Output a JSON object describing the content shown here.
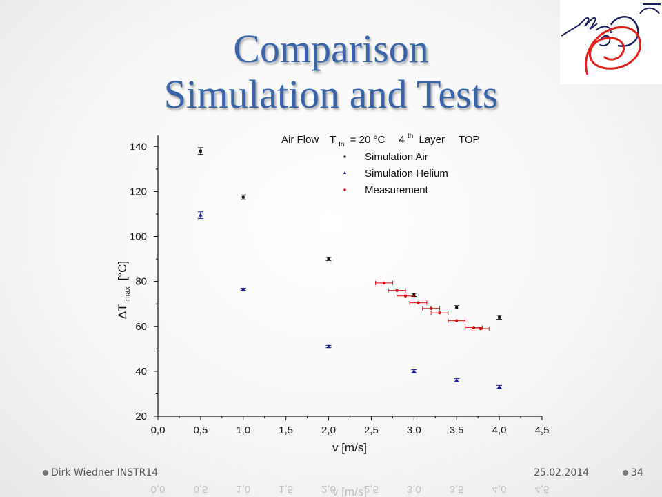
{
  "slide": {
    "title_line1": "Comparison",
    "title_line2": "Simulation and Tests",
    "footer_author": "Dirk Wiedner INSTR14",
    "footer_date": "25.02.2014",
    "footer_page": "34"
  },
  "colors": {
    "title": "#3a64a8",
    "air": "#111111",
    "helium": "#1a1aa0",
    "measurement": "#d01010",
    "logo_red": "#e0201a",
    "logo_navy": "#1a2060"
  },
  "logo": {
    "icon": "mu3e-logo"
  },
  "chart_data": {
    "type": "scatter",
    "annotation_parts": [
      "Air Flow",
      "T",
      "In",
      "= 20 °C",
      "4",
      "th",
      "Layer",
      "TOP"
    ],
    "xlabel": "v [m/s]",
    "ylabel_parts": [
      "ΔT",
      "max",
      "[°C]"
    ],
    "xlim": [
      0.0,
      4.5
    ],
    "ylim": [
      20,
      145
    ],
    "xticks": [
      "0,0",
      "0,5",
      "1,0",
      "1,5",
      "2,0",
      "2,5",
      "3,0",
      "3,5",
      "4,0",
      "4,5"
    ],
    "yticks": [
      "20",
      "40",
      "60",
      "80",
      "100",
      "120",
      "140"
    ],
    "legend_position": "top-center",
    "grid": false,
    "series": [
      {
        "name": "Simulation Air",
        "marker": "square",
        "color": "#111111",
        "points": [
          {
            "x": 0.5,
            "y": 138,
            "yerr": 1.5
          },
          {
            "x": 1.0,
            "y": 117.5,
            "yerr": 1
          },
          {
            "x": 2.0,
            "y": 90,
            "yerr": 0.7
          },
          {
            "x": 3.0,
            "y": 74,
            "yerr": 0.7
          },
          {
            "x": 3.5,
            "y": 68.5,
            "yerr": 0.7
          },
          {
            "x": 4.0,
            "y": 64,
            "yerr": 0.9
          }
        ]
      },
      {
        "name": "Simulation Helium",
        "marker": "triangle",
        "color": "#1a1aa0",
        "points": [
          {
            "x": 0.5,
            "y": 109.5,
            "yerr": 1.5
          },
          {
            "x": 1.0,
            "y": 76.5,
            "yerr": 0.5
          },
          {
            "x": 2.0,
            "y": 51,
            "yerr": 0.5
          },
          {
            "x": 3.0,
            "y": 40,
            "yerr": 0.7
          },
          {
            "x": 3.5,
            "y": 36,
            "yerr": 0.7
          },
          {
            "x": 4.0,
            "y": 33,
            "yerr": 0.7
          }
        ]
      },
      {
        "name": "Measurement",
        "marker": "circle",
        "color": "#d01010",
        "points": [
          {
            "x": 2.65,
            "y": 79.3,
            "xerr": 0.1
          },
          {
            "x": 2.8,
            "y": 76,
            "xerr": 0.1
          },
          {
            "x": 2.9,
            "y": 73.5,
            "xerr": 0.1
          },
          {
            "x": 3.05,
            "y": 70.5,
            "xerr": 0.1
          },
          {
            "x": 3.2,
            "y": 68,
            "xerr": 0.1
          },
          {
            "x": 3.3,
            "y": 66,
            "xerr": 0.1
          },
          {
            "x": 3.5,
            "y": 62.5,
            "xerr": 0.1
          },
          {
            "x": 3.7,
            "y": 59.5,
            "xerr": 0.1
          },
          {
            "x": 3.78,
            "y": 59,
            "xerr": 0.1
          }
        ]
      }
    ]
  }
}
